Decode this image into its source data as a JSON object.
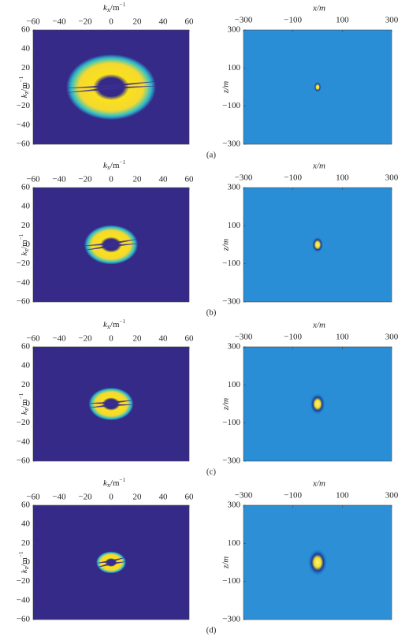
{
  "left_axes": {
    "xlabel": [
      "k",
      "x",
      "/m",
      "−1"
    ],
    "ylabel": [
      "k",
      "z",
      "/m",
      "−1"
    ],
    "xticks": [
      {
        "value": -60,
        "label": "−60"
      },
      {
        "value": -40,
        "label": "−40"
      },
      {
        "value": -20,
        "label": "−20"
      },
      0,
      20,
      40,
      60
    ],
    "yticks": [
      60,
      40,
      20,
      0,
      {
        "value": -20,
        "label": "−20"
      },
      {
        "value": -40,
        "label": "−40"
      },
      {
        "value": -60,
        "label": "−60"
      }
    ]
  },
  "right_axes": {
    "xlabel": "x/m",
    "ylabel": "z/m",
    "xticks": [
      {
        "value": -300,
        "label": "−300"
      },
      {
        "value": -100,
        "label": "−100"
      },
      100,
      300
    ],
    "yticks": [
      300,
      100,
      {
        "value": -100,
        "label": "−100"
      },
      {
        "value": -300,
        "label": "−300"
      }
    ]
  },
  "captions": [
    "(a)",
    "(b)",
    "(c)",
    "(d)"
  ]
}
